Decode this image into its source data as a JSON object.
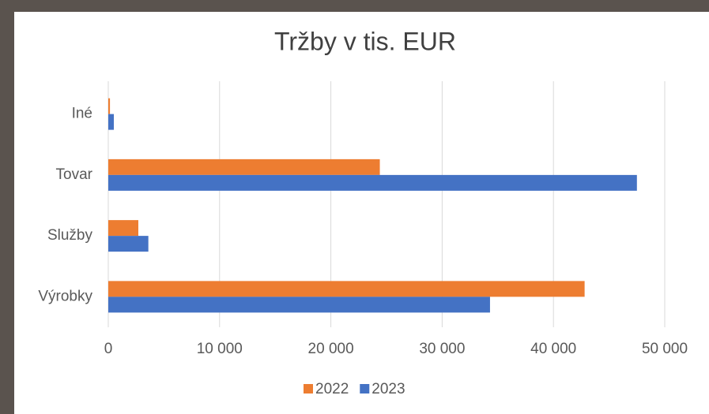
{
  "chart_data": {
    "type": "barh",
    "title": "Tržby v tis. EUR",
    "categories": [
      "Výrobky",
      "Služby",
      "Tovar",
      "Iné"
    ],
    "series": [
      {
        "name": "2022",
        "color": "#ed7d31",
        "values": [
          42800,
          2700,
          24400,
          150
        ]
      },
      {
        "name": "2023",
        "color": "#4472c4",
        "values": [
          34300,
          3600,
          47500,
          500
        ]
      }
    ],
    "xlim": [
      0,
      50000
    ],
    "xticks": [
      0,
      {
        "value": 10000,
        "label": "10 000"
      },
      {
        "value": 20000,
        "label": "20 000"
      },
      {
        "value": 30000,
        "label": "30 000"
      },
      {
        "value": 40000,
        "label": "40 000"
      },
      {
        "value": 50000,
        "label": "50 000"
      }
    ],
    "grid": true,
    "legend": "bottom"
  }
}
